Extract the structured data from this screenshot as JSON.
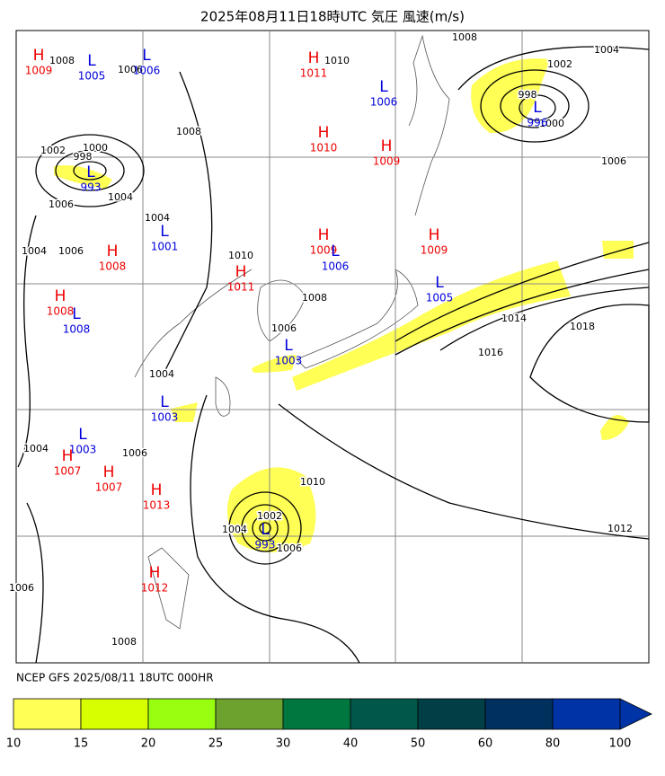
{
  "title": "2025年08月11日18時UTC 気圧 風速(m/s)",
  "footer": "NCEP GFS 2025/08/11 18UTC 000HR",
  "centers": [
    {
      "kind": "H",
      "value": 1009
    },
    {
      "kind": "L",
      "value": 1005
    },
    {
      "kind": "L",
      "value": 1006
    },
    {
      "kind": "H",
      "value": 1011
    },
    {
      "kind": "L",
      "value": 1006
    },
    {
      "kind": "H",
      "value": 1010
    },
    {
      "kind": "H",
      "value": 1009
    },
    {
      "kind": "L",
      "value": 996
    },
    {
      "kind": "L",
      "value": 993
    },
    {
      "kind": "L",
      "value": 1001
    },
    {
      "kind": "H",
      "value": 1008
    },
    {
      "kind": "H",
      "value": 1009
    },
    {
      "kind": "L",
      "value": 1006
    },
    {
      "kind": "H",
      "value": 1009
    },
    {
      "kind": "H",
      "value": 1011
    },
    {
      "kind": "H",
      "value": 1008
    },
    {
      "kind": "L",
      "value": 1008
    },
    {
      "kind": "L",
      "value": 1005
    },
    {
      "kind": "L",
      "value": 1003
    },
    {
      "kind": "L",
      "value": 1003
    },
    {
      "kind": "L",
      "value": 1003
    },
    {
      "kind": "H",
      "value": 1007
    },
    {
      "kind": "H",
      "value": 1007
    },
    {
      "kind": "H",
      "value": 1013
    },
    {
      "kind": "L",
      "value": 993
    },
    {
      "kind": "H",
      "value": 1012
    }
  ],
  "isobar_labels": [
    1008,
    1006,
    1010,
    1008,
    1004,
    1002,
    998,
    1000,
    1006,
    1008,
    1000,
    1002,
    998,
    1004,
    1006,
    1004,
    1004,
    1006,
    1010,
    1008,
    1014,
    1018,
    1016,
    1006,
    1004,
    1010,
    1004,
    1006,
    1012,
    1006,
    1004,
    1006,
    1008,
    1002
  ],
  "colorbar": {
    "ticks": [
      10,
      15,
      20,
      25,
      30,
      40,
      50,
      60,
      80,
      100
    ],
    "colors": [
      "#ffff55",
      "#d8ff00",
      "#99ff11",
      "#6ea22e",
      "#00773f",
      "#00574a",
      "#003f46",
      "#00305e",
      "#0034a6"
    ]
  }
}
